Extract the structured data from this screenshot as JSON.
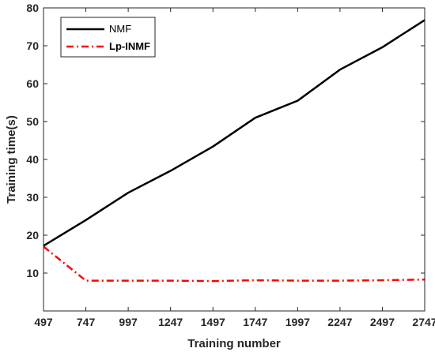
{
  "chart_data": {
    "type": "line",
    "xlabel": "Training number",
    "ylabel": "Training time(s)",
    "x": [
      497,
      747,
      997,
      1247,
      1497,
      1747,
      1997,
      2247,
      2497,
      2747
    ],
    "xticks": [
      "497",
      "747",
      "997",
      "1247",
      "1497",
      "1747",
      "1997",
      "2247",
      "2497",
      "2747"
    ],
    "ylim": [
      0,
      80
    ],
    "yticks": [
      10,
      20,
      30,
      40,
      50,
      60,
      70,
      80
    ],
    "grid": false,
    "legend_position": "top-left",
    "series": [
      {
        "name": "NMF",
        "color": "#000000",
        "style": "solid",
        "values": [
          17.2,
          24.0,
          31.2,
          37.0,
          43.4,
          51.0,
          55.5,
          63.7,
          69.6,
          76.8
        ]
      },
      {
        "name": "Lp-INMF",
        "color": "#ff0000",
        "style": "dash-dot",
        "values": [
          17.0,
          8.0,
          8.0,
          8.0,
          7.9,
          8.1,
          8.0,
          8.0,
          8.1,
          8.3
        ]
      }
    ]
  }
}
